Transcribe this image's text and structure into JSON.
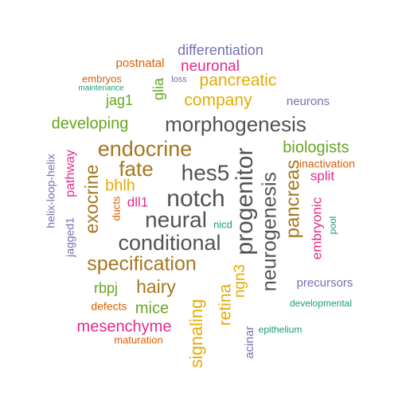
{
  "wordcloud": {
    "words": [
      {
        "text": "differentiation",
        "color": "#7570b3",
        "rotated": false
      },
      {
        "text": "postnatal",
        "color": "#d95f02",
        "rotated": false
      },
      {
        "text": "neuronal",
        "color": "#e7298a",
        "rotated": false
      },
      {
        "text": "embryos",
        "color": "#d95f02",
        "rotated": false
      },
      {
        "text": "loss",
        "color": "#7570b3",
        "rotated": false
      },
      {
        "text": "pancreatic",
        "color": "#e6ab02",
        "rotated": false
      },
      {
        "text": "maintenance",
        "color": "#1b9e77",
        "rotated": false
      },
      {
        "text": "glia",
        "color": "#66a61e",
        "rotated": true
      },
      {
        "text": "jag1",
        "color": "#66a61e",
        "rotated": false
      },
      {
        "text": "company",
        "color": "#e6ab02",
        "rotated": false
      },
      {
        "text": "neurons",
        "color": "#7570b3",
        "rotated": false
      },
      {
        "text": "developing",
        "color": "#66a61e",
        "rotated": false
      },
      {
        "text": "morphogenesis",
        "color": "#525252",
        "rotated": false
      },
      {
        "text": "endocrine",
        "color": "#a6761d",
        "rotated": false
      },
      {
        "text": "biologists",
        "color": "#66a61e",
        "rotated": false
      },
      {
        "text": "inactivation",
        "color": "#d95f02",
        "rotated": false
      },
      {
        "text": "pathway",
        "color": "#e7298a",
        "rotated": true
      },
      {
        "text": "helix-loop-helix",
        "color": "#7570b3",
        "rotated": true
      },
      {
        "text": "fate",
        "color": "#a6761d",
        "rotated": false
      },
      {
        "text": "hes5",
        "color": "#525252",
        "rotated": false
      },
      {
        "text": "split",
        "color": "#e7298a",
        "rotated": false
      },
      {
        "text": "exocrine",
        "color": "#a6761d",
        "rotated": true
      },
      {
        "text": "bhlh",
        "color": "#e6ab02",
        "rotated": false
      },
      {
        "text": "notch",
        "color": "#525252",
        "rotated": false
      },
      {
        "text": "progenitor",
        "color": "#525252",
        "rotated": true
      },
      {
        "text": "neurogenesis",
        "color": "#525252",
        "rotated": true
      },
      {
        "text": "pancreas",
        "color": "#a6761d",
        "rotated": true
      },
      {
        "text": "dll1",
        "color": "#e7298a",
        "rotated": false
      },
      {
        "text": "ducts",
        "color": "#d95f02",
        "rotated": true
      },
      {
        "text": "embryonic",
        "color": "#e7298a",
        "rotated": true
      },
      {
        "text": "pool",
        "color": "#1b9e77",
        "rotated": true
      },
      {
        "text": "jagged1",
        "color": "#7570b3",
        "rotated": true
      },
      {
        "text": "neural",
        "color": "#525252",
        "rotated": false
      },
      {
        "text": "nicd",
        "color": "#1b9e77",
        "rotated": false
      },
      {
        "text": "conditional",
        "color": "#525252",
        "rotated": false
      },
      {
        "text": "specification",
        "color": "#a6761d",
        "rotated": false
      },
      {
        "text": "ngn3",
        "color": "#e6ab02",
        "rotated": true
      },
      {
        "text": "rbpj",
        "color": "#66a61e",
        "rotated": false
      },
      {
        "text": "hairy",
        "color": "#a6761d",
        "rotated": false
      },
      {
        "text": "precursors",
        "color": "#7570b3",
        "rotated": false
      },
      {
        "text": "retina",
        "color": "#e6ab02",
        "rotated": true
      },
      {
        "text": "defects",
        "color": "#d95f02",
        "rotated": false
      },
      {
        "text": "mice",
        "color": "#66a61e",
        "rotated": false
      },
      {
        "text": "developmental",
        "color": "#1b9e77",
        "rotated": false
      },
      {
        "text": "signaling",
        "color": "#e6ab02",
        "rotated": true
      },
      {
        "text": "mesenchyme",
        "color": "#e7298a",
        "rotated": false
      },
      {
        "text": "epithelium",
        "color": "#1b9e77",
        "rotated": false
      },
      {
        "text": "acinar",
        "color": "#7570b3",
        "rotated": true
      },
      {
        "text": "maturation",
        "color": "#d95f02",
        "rotated": false
      }
    ]
  }
}
